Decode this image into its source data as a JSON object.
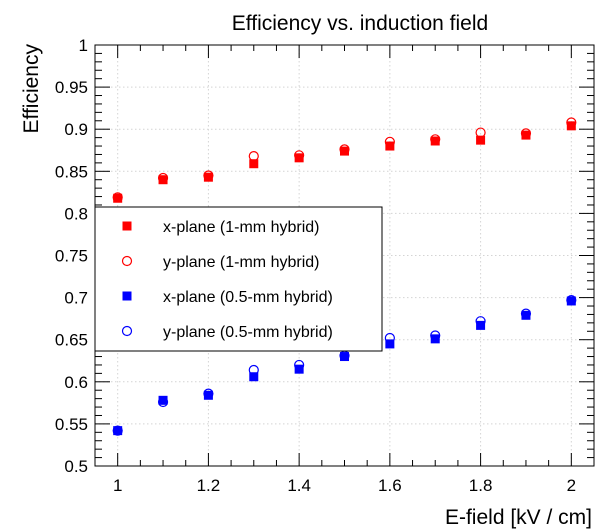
{
  "chart_data": {
    "type": "scatter",
    "title": "Efficiency vs. induction field",
    "xlabel": "E-field [kV / cm]",
    "ylabel": "Efficiency",
    "xlim": [
      0.95,
      2.05
    ],
    "ylim": [
      0.5,
      1.0
    ],
    "xticks": [
      1,
      1.2,
      1.4,
      1.6,
      1.8,
      2
    ],
    "xtick_labels": [
      "1",
      "1.2",
      "1.4",
      "1.6",
      "1.8",
      "2"
    ],
    "yticks": [
      0.5,
      0.55,
      0.6,
      0.65,
      0.7,
      0.75,
      0.8,
      0.85,
      0.9,
      0.95,
      1.0
    ],
    "ytick_labels": [
      "0.5",
      "0.55",
      "0.6",
      "0.65",
      "0.7",
      "0.75",
      "0.8",
      "0.85",
      "0.9",
      "0.95",
      "1"
    ],
    "grid": true,
    "legend_position": "left-middle",
    "x": [
      1.0,
      1.1,
      1.2,
      1.3,
      1.4,
      1.5,
      1.6,
      1.7,
      1.8,
      1.9,
      2.0
    ],
    "series": [
      {
        "name": "x-plane (1-mm hybrid)",
        "marker": "filled-square",
        "color": "#ff0000",
        "values": [
          0.818,
          0.84,
          0.843,
          0.859,
          0.866,
          0.874,
          0.88,
          0.886,
          0.887,
          0.893,
          0.904
        ]
      },
      {
        "name": "y-plane (1-mm hybrid)",
        "marker": "open-circle",
        "color": "#ff0000",
        "values": [
          0.819,
          0.842,
          0.845,
          0.868,
          0.869,
          0.876,
          0.885,
          0.888,
          0.896,
          0.895,
          0.908
        ]
      },
      {
        "name": "x-plane (0.5-mm hybrid)",
        "marker": "filled-square",
        "color": "#0000ff",
        "values": [
          0.542,
          0.578,
          0.584,
          0.606,
          0.615,
          0.63,
          0.645,
          0.651,
          0.667,
          0.679,
          0.696
        ]
      },
      {
        "name": "y-plane (0.5-mm hybrid)",
        "marker": "open-circle",
        "color": "#0000ff",
        "values": [
          0.542,
          0.576,
          0.586,
          0.614,
          0.62,
          0.631,
          0.652,
          0.655,
          0.672,
          0.681,
          0.697
        ]
      }
    ]
  }
}
